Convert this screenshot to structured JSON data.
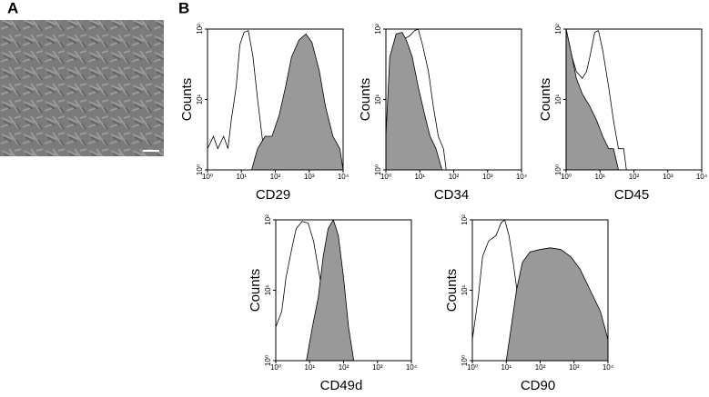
{
  "panel_labels": [
    "A",
    "B"
  ],
  "chart_data": [
    {
      "type": "histogram",
      "title": "CD29",
      "ylabel": "Counts",
      "xscale": "log",
      "yscale": "log",
      "xlim": [
        1,
        10000
      ],
      "ylim": [
        1,
        100
      ],
      "xticks": [
        {
          "value": 1,
          "label": "10⁰"
        },
        {
          "value": 10,
          "label": "10¹"
        },
        {
          "value": 100,
          "label": "10²"
        },
        {
          "value": 1000,
          "label": "10³"
        },
        {
          "value": 10000,
          "label": "10⁴"
        }
      ],
      "yticks": [
        {
          "value": 1,
          "label": "10⁰"
        },
        {
          "value": 10,
          "label": "10¹"
        },
        {
          "value": 100,
          "label": "10²"
        }
      ],
      "series": [
        {
          "color": "#000000",
          "filled": false,
          "x": [
            1,
            1.5,
            2,
            3,
            4,
            5,
            7,
            9,
            12,
            16,
            22,
            30,
            45,
            70
          ],
          "values": [
            2,
            3,
            2,
            3,
            2,
            5,
            15,
            60,
            90,
            95,
            40,
            10,
            2,
            1
          ]
        },
        {
          "color": "#999999",
          "filled": true,
          "x": [
            20,
            30,
            50,
            80,
            130,
            200,
            300,
            500,
            800,
            1200,
            2000,
            3000,
            5000,
            8000,
            10000
          ],
          "values": [
            1,
            2,
            3,
            3,
            6,
            15,
            40,
            70,
            85,
            65,
            25,
            8,
            3,
            2,
            1
          ]
        }
      ]
    },
    {
      "type": "histogram",
      "title": "CD34",
      "ylabel": "Counts",
      "xscale": "log",
      "yscale": "log",
      "xlim": [
        1,
        10000
      ],
      "ylim": [
        1,
        100
      ],
      "xticks": [
        {
          "value": 1,
          "label": "10⁰"
        },
        {
          "value": 10,
          "label": "10¹"
        },
        {
          "value": 100,
          "label": "10²"
        },
        {
          "value": 1000,
          "label": "10³"
        },
        {
          "value": 10000,
          "label": "10⁴"
        }
      ],
      "yticks": [
        {
          "value": 1,
          "label": "10⁰"
        },
        {
          "value": 10,
          "label": "10¹"
        },
        {
          "value": 100,
          "label": "10²"
        }
      ],
      "series": [
        {
          "color": "#000000",
          "filled": false,
          "x": [
            1,
            1.5,
            2,
            3,
            5,
            7,
            9,
            12,
            18,
            25,
            35,
            50,
            60
          ],
          "values": [
            2,
            10,
            40,
            70,
            80,
            95,
            100,
            60,
            25,
            8,
            3,
            2,
            1
          ]
        },
        {
          "color": "#999999",
          "filled": true,
          "x": [
            1,
            1.3,
            2,
            3,
            4,
            6,
            9,
            14,
            20,
            30,
            45
          ],
          "values": [
            3,
            40,
            85,
            90,
            70,
            40,
            15,
            6,
            3,
            2,
            1
          ]
        }
      ]
    },
    {
      "type": "histogram",
      "title": "CD45",
      "ylabel": "Counts",
      "xscale": "log",
      "yscale": "log",
      "xlim": [
        1,
        10000
      ],
      "ylim": [
        1,
        100
      ],
      "xticks": [
        {
          "value": 1,
          "label": "10⁰"
        },
        {
          "value": 10,
          "label": "10¹"
        },
        {
          "value": 100,
          "label": "10²"
        },
        {
          "value": 1000,
          "label": "10³"
        },
        {
          "value": 10000,
          "label": "10⁴"
        }
      ],
      "yticks": [
        {
          "value": 1,
          "label": "10⁰"
        },
        {
          "value": 10,
          "label": "10¹"
        },
        {
          "value": 100,
          "label": "10²"
        }
      ],
      "series": [
        {
          "color": "#000000",
          "filled": false,
          "x": [
            1,
            1.5,
            2,
            3,
            4,
            5,
            7,
            9,
            12,
            18,
            25,
            35,
            50,
            60
          ],
          "values": [
            100,
            40,
            25,
            20,
            25,
            40,
            90,
            95,
            50,
            15,
            5,
            2,
            2,
            1
          ]
        },
        {
          "color": "#999999",
          "filled": true,
          "x": [
            1,
            1.5,
            2,
            3,
            5,
            8,
            12,
            18,
            25,
            35
          ],
          "values": [
            100,
            40,
            20,
            12,
            8,
            5,
            3,
            2,
            2,
            1
          ]
        }
      ]
    },
    {
      "type": "histogram",
      "title": "CD49d",
      "ylabel": "Counts",
      "xscale": "log",
      "yscale": "log",
      "xlim": [
        1,
        10000
      ],
      "ylim": [
        1,
        100
      ],
      "xticks": [
        {
          "value": 1,
          "label": "10⁰"
        },
        {
          "value": 10,
          "label": "10¹"
        },
        {
          "value": 100,
          "label": "10²"
        },
        {
          "value": 1000,
          "label": "10³"
        },
        {
          "value": 10000,
          "label": "10⁴"
        }
      ],
      "yticks": [
        {
          "value": 1,
          "label": "10⁰"
        },
        {
          "value": 10,
          "label": "10¹"
        },
        {
          "value": 100,
          "label": "10²"
        }
      ],
      "series": [
        {
          "color": "#000000",
          "filled": false,
          "x": [
            1,
            1.5,
            2,
            3,
            4,
            6,
            9,
            13,
            20,
            30,
            45,
            70,
            100
          ],
          "values": [
            3,
            5,
            15,
            40,
            75,
            95,
            90,
            50,
            15,
            5,
            2,
            2,
            1
          ]
        },
        {
          "color": "#999999",
          "filled": true,
          "x": [
            8,
            12,
            18,
            25,
            35,
            50,
            70,
            100,
            140,
            200
          ],
          "values": [
            1,
            3,
            8,
            30,
            75,
            100,
            60,
            15,
            3,
            1
          ]
        }
      ]
    },
    {
      "type": "histogram",
      "title": "CD90",
      "ylabel": "Counts",
      "xscale": "log",
      "yscale": "log",
      "xlim": [
        1,
        10000
      ],
      "ylim": [
        1,
        100
      ],
      "xticks": [
        {
          "value": 1,
          "label": "10⁰"
        },
        {
          "value": 10,
          "label": "10¹"
        },
        {
          "value": 100,
          "label": "10²"
        },
        {
          "value": 1000,
          "label": "10³"
        },
        {
          "value": 10000,
          "label": "10⁴"
        }
      ],
      "yticks": [
        {
          "value": 1,
          "label": "10⁰"
        },
        {
          "value": 10,
          "label": "10¹"
        },
        {
          "value": 100,
          "label": "10²"
        }
      ],
      "series": [
        {
          "color": "#000000",
          "filled": false,
          "x": [
            1,
            1.5,
            2,
            3,
            5,
            7,
            9,
            12,
            16,
            22,
            30
          ],
          "values": [
            2,
            8,
            30,
            50,
            60,
            90,
            100,
            60,
            25,
            8,
            3
          ]
        },
        {
          "color": "#999999",
          "filled": true,
          "x": [
            10,
            14,
            20,
            30,
            50,
            100,
            200,
            400,
            800,
            1500,
            3000,
            6000,
            10000
          ],
          "values": [
            1,
            3,
            10,
            25,
            35,
            38,
            40,
            38,
            30,
            20,
            10,
            5,
            2
          ]
        }
      ]
    }
  ]
}
